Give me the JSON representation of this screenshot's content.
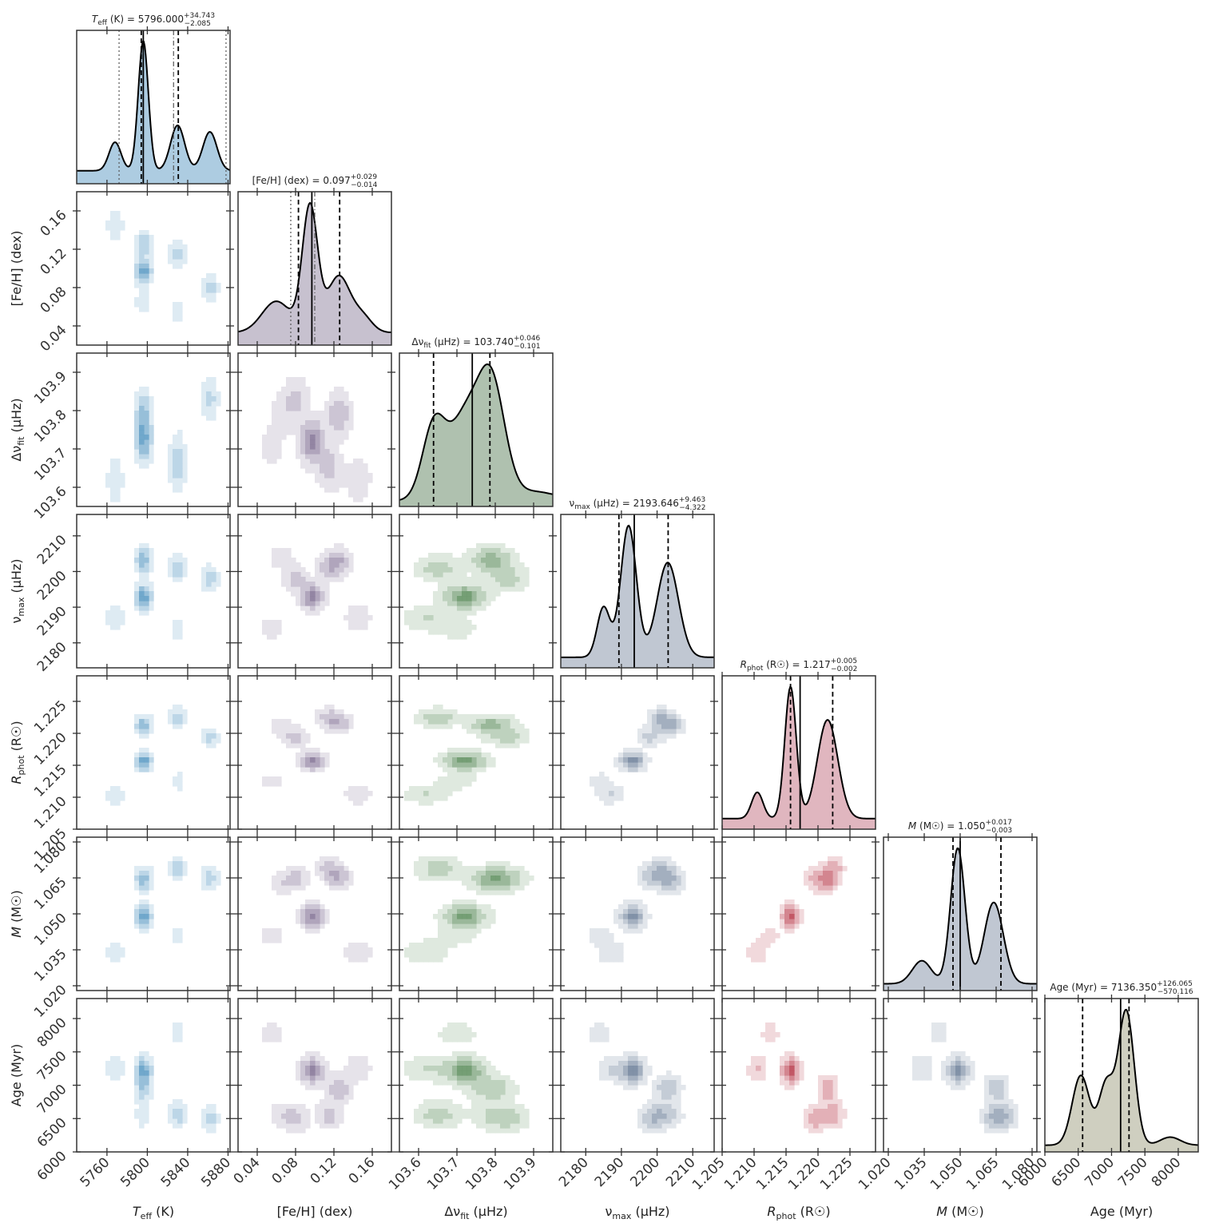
{
  "chart_data": {
    "type": "corner",
    "parameters": [
      {
        "key": "teff",
        "main": "T",
        "sub": "eff",
        "unit": " (K)",
        "italic": true,
        "label": "T_eff (K)",
        "range": [
          5730,
          5882
        ],
        "ticks": [
          5760,
          5800,
          5840,
          5880
        ],
        "tick_labels": [
          "5760",
          "5800",
          "5840",
          "5880"
        ],
        "color": "#6aa3c9",
        "title": "T_eff (K) = 5796.000 +34.743 −2.085",
        "title_value": "5796.000",
        "title_plus": "+34.743",
        "title_minus": "2.085",
        "median": 5796,
        "q16": 5794,
        "q84": 5830.7,
        "aux_lines": [
          5826,
          5772,
          5878
        ],
        "modes": [
          {
            "c": 5796,
            "w": 1.0,
            "s": 5
          },
          {
            "c": 5830,
            "w": 0.35,
            "s": 7
          },
          {
            "c": 5862,
            "w": 0.3,
            "s": 7
          },
          {
            "c": 5768,
            "w": 0.22,
            "s": 6
          }
        ],
        "base": 0.1
      },
      {
        "key": "feh",
        "main": "[Fe/H]",
        "sub": "",
        "unit": " (dex)",
        "italic": false,
        "label": "[Fe/H] (dex)",
        "range": [
          0.02,
          0.18
        ],
        "ticks": [
          0.04,
          0.08,
          0.12,
          0.16
        ],
        "tick_labels": [
          "0.04",
          "0.08",
          "0.12",
          "0.16"
        ],
        "color": "#9a8fa8",
        "title": "[Fe/H] (dex) = 0.097 +0.029 −0.014",
        "title_value": "0.097",
        "title_plus": "+0.029",
        "title_minus": "0.014",
        "median": 0.097,
        "q16": 0.083,
        "q84": 0.126,
        "aux_lines": [
          0.1,
          0.075
        ],
        "modes": [
          {
            "c": 0.095,
            "w": 1.0,
            "s": 0.008
          },
          {
            "c": 0.125,
            "w": 0.45,
            "s": 0.012
          },
          {
            "c": 0.06,
            "w": 0.25,
            "s": 0.015
          },
          {
            "c": 0.15,
            "w": 0.12,
            "s": 0.01
          }
        ],
        "base": 0.1
      },
      {
        "key": "dnu",
        "main": "Δν",
        "sub": "fit",
        "unit": " (μHz)",
        "italic": false,
        "label": "Δν_fit (μHz)",
        "range": [
          103.55,
          103.95
        ],
        "ticks": [
          103.6,
          103.7,
          103.8,
          103.9
        ],
        "tick_labels": [
          "103.6",
          "103.7",
          "103.8",
          "103.9"
        ],
        "color": "#6e8f6e",
        "title": "Δν_fit (μHz) = 103.740 +0.046 −0.101",
        "title_value": "103.740",
        "title_plus": "+0.046",
        "title_minus": "0.101",
        "median": 103.74,
        "q16": 103.639,
        "q84": 103.786,
        "aux_lines": [],
        "modes": [
          {
            "c": 103.79,
            "w": 1.0,
            "s": 0.035
          },
          {
            "c": 103.64,
            "w": 0.65,
            "s": 0.03
          },
          {
            "c": 103.72,
            "w": 0.7,
            "s": 0.04
          },
          {
            "c": 103.9,
            "w": 0.08,
            "s": 0.06
          }
        ],
        "base": 0.05
      },
      {
        "key": "numax",
        "main": "ν",
        "sub": "max",
        "unit": " (μHz)",
        "italic": false,
        "label": "ν_max (μHz)",
        "range": [
          2173,
          2216
        ],
        "ticks": [
          2180,
          2190,
          2200,
          2210
        ],
        "tick_labels": [
          "2180",
          "2190",
          "2200",
          "2210"
        ],
        "color": "#8c9aae",
        "title": "ν_max (μHz) = 2193.646 +9.463 −4.322",
        "title_value": "2193.646",
        "title_plus": "+9.463",
        "title_minus": "4.322",
        "median": 2193.6,
        "q16": 2189.3,
        "q84": 2203.1,
        "aux_lines": [],
        "modes": [
          {
            "c": 2192,
            "w": 1.0,
            "s": 2.2
          },
          {
            "c": 2203,
            "w": 0.72,
            "s": 3
          },
          {
            "c": 2185,
            "w": 0.38,
            "s": 1.8
          }
        ],
        "base": 0.08
      },
      {
        "key": "rphot",
        "main": "R",
        "sub": "phot",
        "unit": " (R☉)",
        "italic": true,
        "label": "R_phot (R☉)",
        "range": [
          1.205,
          1.229
        ],
        "ticks": [
          1.205,
          1.21,
          1.215,
          1.22,
          1.225
        ],
        "tick_labels": [
          "1.205",
          "1.210",
          "1.215",
          "1.220",
          "1.225"
        ],
        "color": "#c77a8a",
        "title": "R_phot (R☉) = 1.217 +0.005 −0.002",
        "title_value": "1.217",
        "title_plus": "+0.005",
        "title_minus": "0.002",
        "median": 1.2172,
        "q16": 1.2157,
        "q84": 1.2223,
        "aux_lines": [],
        "modes": [
          {
            "c": 1.2157,
            "w": 1.0,
            "s": 0.0009
          },
          {
            "c": 1.2215,
            "w": 0.75,
            "s": 0.0016
          },
          {
            "c": 1.2105,
            "w": 0.2,
            "s": 0.0009
          }
        ],
        "base": 0.08
      },
      {
        "key": "mass",
        "main": "M",
        "sub": "",
        "unit": " (M☉)",
        "italic": true,
        "label": "M (M☉)",
        "range": [
          1.018,
          1.082
        ],
        "ticks": [
          1.02,
          1.035,
          1.05,
          1.065,
          1.08
        ],
        "tick_labels": [
          "1.020",
          "1.035",
          "1.050",
          "1.065",
          "1.080"
        ],
        "color": "#8c9aae",
        "title": "M (M☉) = 1.050 +0.017 −0.003",
        "title_value": "1.050",
        "title_plus": "+0.017",
        "title_minus": "0.003",
        "median": 1.05,
        "q16": 1.047,
        "q84": 1.067,
        "aux_lines": [],
        "modes": [
          {
            "c": 1.049,
            "w": 1.0,
            "s": 0.003
          },
          {
            "c": 1.064,
            "w": 0.6,
            "s": 0.004
          },
          {
            "c": 1.034,
            "w": 0.17,
            "s": 0.004
          }
        ],
        "base": 0.05
      },
      {
        "key": "age",
        "main": "Age",
        "sub": "",
        "unit": " (Myr)",
        "italic": false,
        "label": "Age (Myr)",
        "range": [
          6000,
          8300
        ],
        "ticks": [
          6000,
          6500,
          7000,
          7500,
          8000
        ],
        "tick_labels": [
          "6000",
          "6500",
          "7000",
          "7500",
          "8000"
        ],
        "color": "#a8a88c",
        "title": "Age (Myr) = 7136.350 +126.065 −570.116",
        "title_value": "7136.350",
        "title_plus": "+126.065",
        "title_minus": "570.116",
        "median": 7136,
        "q16": 6566,
        "q84": 7262,
        "aux_lines": [],
        "modes": [
          {
            "c": 7220,
            "w": 1.0,
            "s": 120
          },
          {
            "c": 6540,
            "w": 0.52,
            "s": 130
          },
          {
            "c": 6920,
            "w": 0.45,
            "s": 110
          },
          {
            "c": 7880,
            "w": 0.06,
            "s": 150
          }
        ],
        "base": 0.05
      }
    ],
    "panel_colors": {
      "teff": "#6aa3c9",
      "feh": "#8e7f9f",
      "dnu": "#6e9a6e",
      "numax": "#7c8da3",
      "rphot": "#c0505f",
      "mass": "#7c8da3",
      "age": "#a8a88c"
    },
    "joint_clusters": [
      {
        "w": 1.0,
        "v": [
          5796,
          0.097,
          103.72,
          2193,
          1.2157,
          1.049,
          7220
        ]
      },
      {
        "w": 0.55,
        "v": [
          5796,
          0.125,
          103.79,
          2203,
          1.2215,
          1.065,
          6950
        ]
      },
      {
        "w": 0.45,
        "v": [
          5830,
          0.115,
          103.65,
          2201,
          1.2225,
          1.069,
          6560
        ]
      },
      {
        "w": 0.4,
        "v": [
          5862,
          0.08,
          103.83,
          2198,
          1.2195,
          1.065,
          6500
        ]
      },
      {
        "w": 0.3,
        "v": [
          5768,
          0.145,
          103.62,
          2187,
          1.2105,
          1.034,
          7250
        ]
      },
      {
        "w": 0.22,
        "v": [
          5796,
          0.065,
          103.79,
          2204,
          1.221,
          1.063,
          6560
        ]
      },
      {
        "w": 0.18,
        "v": [
          5830,
          0.055,
          103.7,
          2184,
          1.2125,
          1.041,
          7780
        ]
      }
    ]
  }
}
